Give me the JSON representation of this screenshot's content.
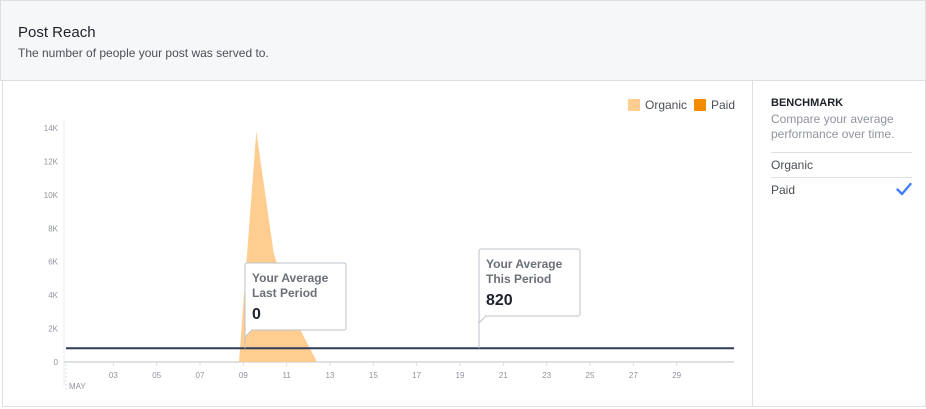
{
  "header": {
    "title": "Post Reach",
    "subtitle": "The number of people your post was served to."
  },
  "legend": {
    "organic_label": "Organic",
    "paid_label": "Paid"
  },
  "benchmark": {
    "title": "BENCHMARK",
    "description": "Compare your average performance over time.",
    "options": [
      {
        "label": "Organic",
        "selected": false
      },
      {
        "label": "Paid",
        "selected": true
      }
    ]
  },
  "tooltips": {
    "last_period": {
      "line1": "Your Average",
      "line2": "Last Period",
      "value": "0"
    },
    "this_period": {
      "line1": "Your Average",
      "line2": "This Period",
      "value": "820"
    }
  },
  "colors": {
    "organic": "#ffcd8f",
    "paid": "#f28b00",
    "average_line": "#2f3b59",
    "check": "#4080ff"
  },
  "chart_data": {
    "type": "area",
    "title": "Post Reach",
    "ylabel": "",
    "xlabel": "MAY",
    "ylim": [
      0,
      14000
    ],
    "xlim": [
      1,
      31
    ],
    "y_ticks": [
      "0",
      "2K",
      "4K",
      "6K",
      "8K",
      "10K",
      "12K",
      "14K"
    ],
    "y_tick_values": [
      0,
      2000,
      4000,
      6000,
      8000,
      10000,
      12000,
      14000
    ],
    "x_ticks": [
      "03",
      "05",
      "07",
      "09",
      "11",
      "13",
      "15",
      "17",
      "19",
      "21",
      "23",
      "25",
      "27",
      "29"
    ],
    "x_tick_values": [
      3,
      5,
      7,
      9,
      11,
      13,
      15,
      17,
      19,
      21,
      23,
      25,
      27,
      29
    ],
    "x_month_label": "MAY",
    "series": [
      {
        "name": "Organic",
        "x": [
          8.8,
          9.6,
          10.4,
          11.0,
          11.6,
          12.4
        ],
        "values": [
          0,
          13800,
          6500,
          4200,
          2000,
          0
        ]
      },
      {
        "name": "Paid",
        "x": [],
        "values": []
      }
    ],
    "average_line": {
      "label": "Your Average This Period",
      "value": 820
    }
  }
}
